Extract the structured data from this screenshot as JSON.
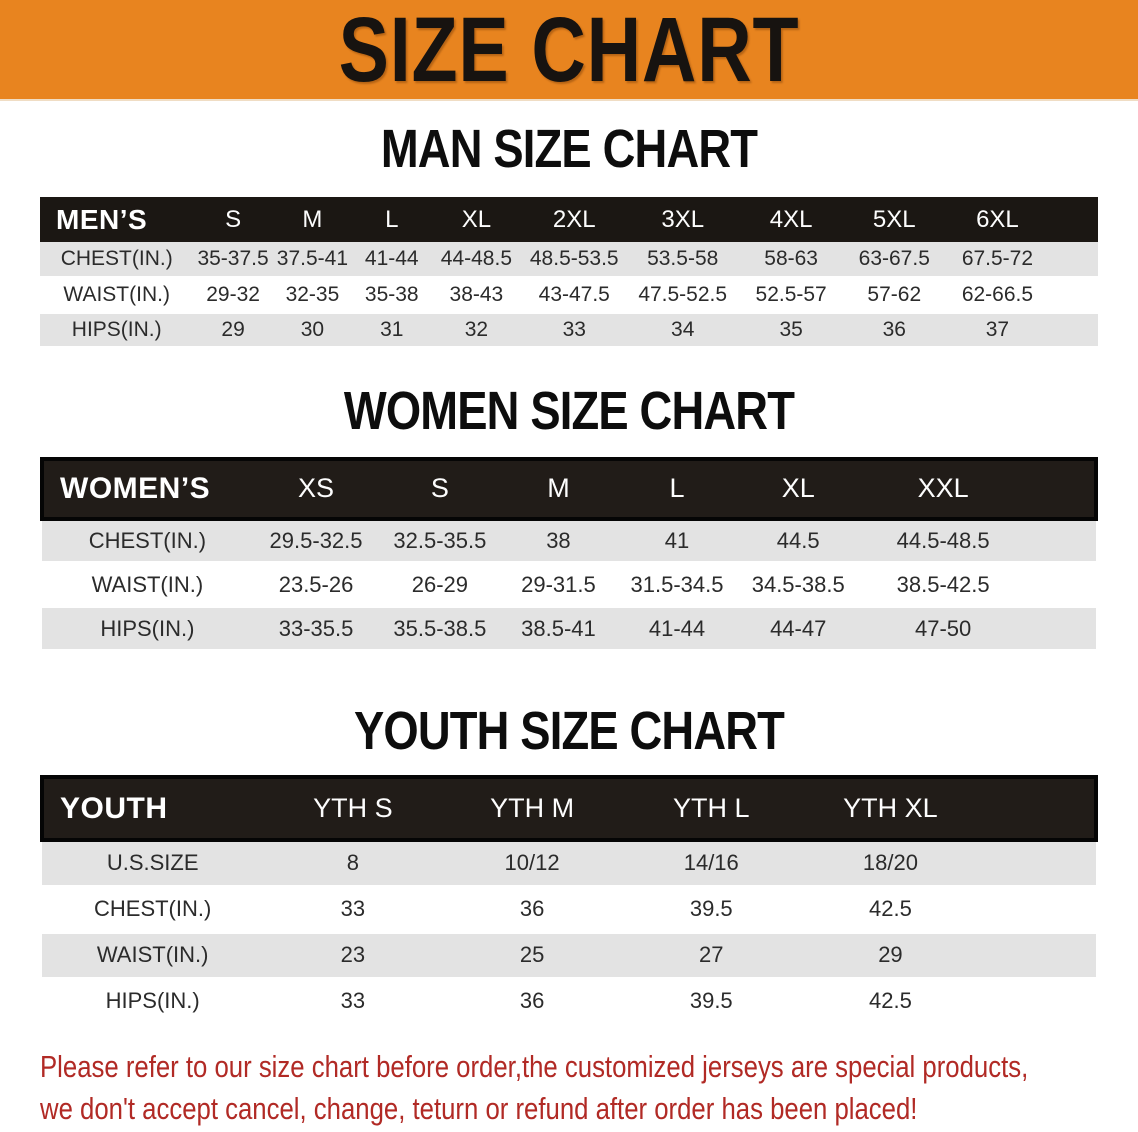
{
  "banner": {
    "title": "SIZE CHART"
  },
  "colors": {
    "banner_orange": "#E8841F",
    "header_black": "#1B1713",
    "row_gray": "#E3E3E3",
    "row_white": "#FFFFFF",
    "disclaimer_red": "#B12A25"
  },
  "sections": [
    {
      "title": "MAN SIZE CHART",
      "table": {
        "header": [
          "MEN’S",
          "S",
          "M",
          "L",
          "XL",
          "2XL",
          "3XL",
          "4XL",
          "5XL",
          "6XL"
        ],
        "rows": [
          [
            "CHEST(IN.)",
            "35-37.5",
            "37.5-41",
            "41-44",
            "44-48.5",
            "48.5-53.5",
            "53.5-58",
            "58-63",
            "63-67.5",
            "67.5-72"
          ],
          [
            "WAIST(IN.)",
            "29-32",
            "32-35",
            "35-38",
            "38-43",
            "43-47.5",
            "47.5-52.5",
            "52.5-57",
            "57-62",
            "62-66.5"
          ],
          [
            "HIPS(IN.)",
            "29",
            "30",
            "31",
            "32",
            "33",
            "34",
            "35",
            "36",
            "37"
          ]
        ]
      }
    },
    {
      "title": "WOMEN SIZE CHART",
      "table": {
        "header": [
          "WOMEN’S",
          "XS",
          "S",
          "M",
          "L",
          "XL",
          "XXL"
        ],
        "rows": [
          [
            "CHEST(IN.)",
            "29.5-32.5",
            "32.5-35.5",
            "38",
            "41",
            "44.5",
            "44.5-48.5"
          ],
          [
            "WAIST(IN.)",
            "23.5-26",
            "26-29",
            "29-31.5",
            "31.5-34.5",
            "34.5-38.5",
            "38.5-42.5"
          ],
          [
            "HIPS(IN.)",
            "33-35.5",
            "35.5-38.5",
            "38.5-41",
            "41-44",
            "44-47",
            "47-50"
          ]
        ]
      }
    },
    {
      "title": "YOUTH SIZE CHART",
      "table": {
        "header": [
          "YOUTH",
          "YTH S",
          "YTH M",
          "YTH L",
          "YTH XL"
        ],
        "rows": [
          [
            "U.S.SIZE",
            "8",
            "10/12",
            "14/16",
            "18/20"
          ],
          [
            "CHEST(IN.)",
            "33",
            "36",
            "39.5",
            "42.5"
          ],
          [
            "WAIST(IN.)",
            "23",
            "25",
            "27",
            "29"
          ],
          [
            "HIPS(IN.)",
            "33",
            "36",
            "39.5",
            "42.5"
          ]
        ]
      }
    }
  ],
  "disclaimer": {
    "line1": "Please refer to our size chart before order,the customized jerseys are special products,",
    "line2": "we don't accept cancel, change, teturn or refund after order has been placed!"
  }
}
